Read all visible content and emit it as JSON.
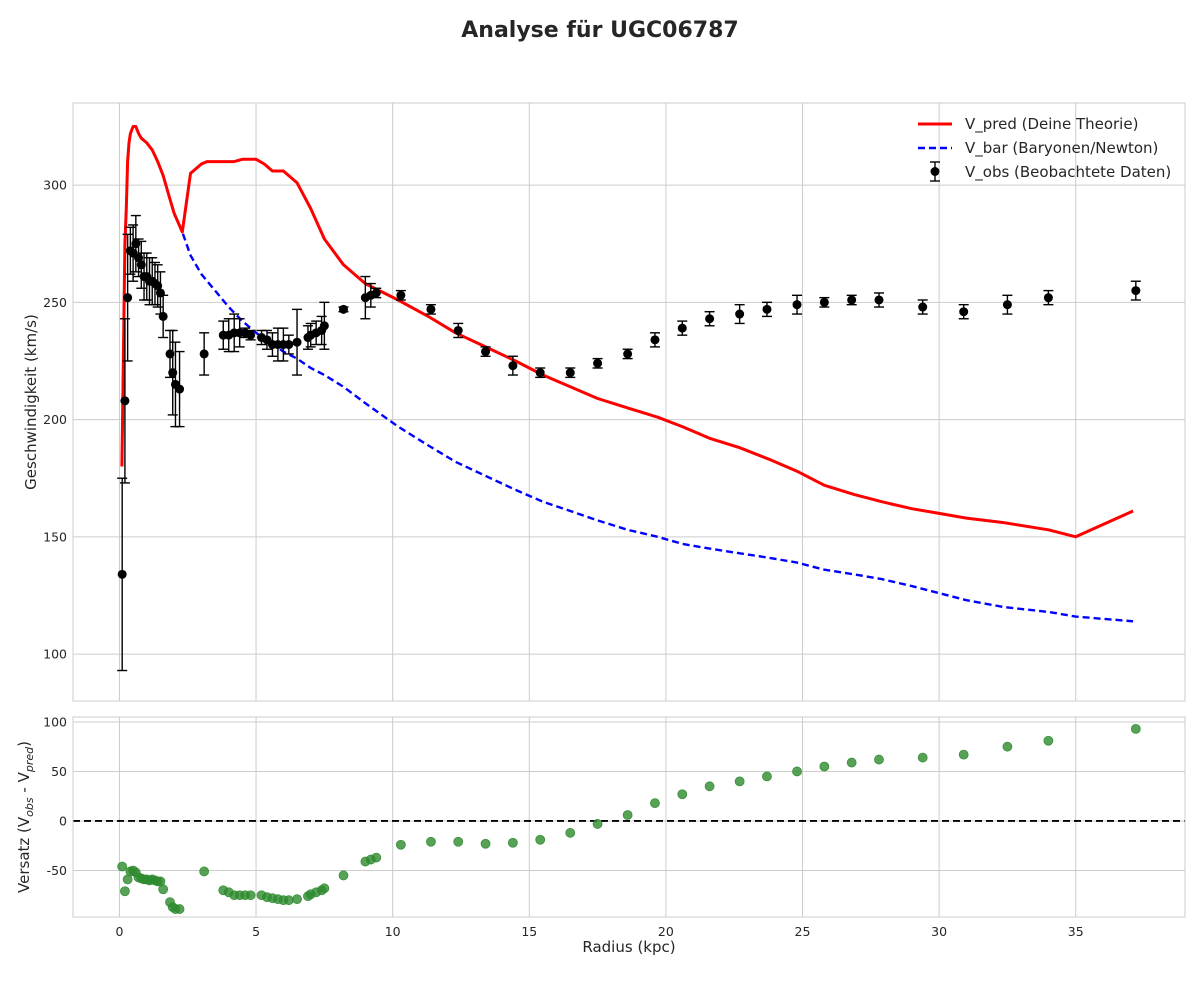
{
  "chart_data": [
    {
      "type": "line",
      "title": "Analyse für UGC06787",
      "xlabel": "",
      "ylabel": "Geschwindigkeit (km/s)",
      "xlim": [
        -1.7,
        39.0
      ],
      "ylim": [
        80,
        335
      ],
      "yticks": [
        100,
        150,
        200,
        250,
        300
      ],
      "xticks": [
        0,
        5,
        10,
        15,
        20,
        25,
        30,
        35
      ],
      "grid": true,
      "legend_position": "top-right",
      "series": [
        {
          "name": "V_pred (Deine Theorie)",
          "style": "solid",
          "color": "#ff0000",
          "x": [
            0.09,
            0.15,
            0.2,
            0.25,
            0.3,
            0.35,
            0.4,
            0.5,
            0.6,
            0.7,
            0.8,
            1.0,
            1.2,
            1.4,
            1.6,
            1.8,
            2.0,
            2.3,
            2.6,
            3.0,
            3.2,
            3.5,
            3.8,
            4.2,
            4.5,
            5.0,
            5.3,
            5.6,
            6.0,
            6.5,
            7.0,
            7.5,
            8.2,
            9.0,
            10.2,
            11.3,
            12.3,
            13.4,
            14.5,
            15.5,
            16.5,
            17.5,
            18.6,
            19.7,
            20.6,
            21.6,
            22.7,
            23.8,
            24.8,
            25.8,
            26.9,
            27.9,
            29.0,
            30.0,
            31.0,
            32.4,
            34.0,
            35.0,
            37.1
          ],
          "y": [
            180,
            230,
            275,
            290,
            310,
            318,
            322,
            325,
            325,
            322,
            320,
            318,
            315,
            310,
            304,
            296,
            288,
            280,
            305,
            309,
            310,
            310,
            310,
            310,
            311,
            311,
            309,
            306,
            306,
            301,
            290,
            277,
            266,
            258,
            251,
            244,
            237,
            231,
            225,
            219,
            214,
            209,
            205,
            201,
            197,
            192,
            188,
            183,
            178,
            172,
            168,
            165,
            162,
            160,
            158,
            156,
            153,
            150,
            161
          ],
          "note": ""
        },
        {
          "name": "V_bar (Baryonen/Newton)",
          "style": "dashed",
          "color": "#0000ff",
          "x": [
            0.09,
            0.15,
            0.2,
            0.25,
            0.3,
            0.35,
            0.4,
            0.5,
            0.6,
            0.7,
            0.8,
            1.0,
            1.2,
            1.4,
            1.6,
            1.8,
            2.0,
            2.3,
            2.6,
            3.0,
            3.5,
            4.0,
            4.5,
            5.0,
            5.5,
            6.0,
            6.5,
            7.0,
            7.5,
            8.2,
            9.0,
            10.2,
            11.3,
            12.3,
            13.4,
            14.5,
            15.5,
            16.5,
            17.5,
            18.6,
            19.7,
            20.6,
            21.6,
            22.7,
            23.8,
            24.8,
            25.8,
            26.9,
            27.9,
            29.0,
            30.0,
            31.0,
            32.4,
            34.0,
            35.0,
            37.1
          ],
          "y": [
            180,
            230,
            275,
            290,
            310,
            318,
            322,
            325,
            325,
            322,
            320,
            318,
            315,
            310,
            304,
            296,
            288,
            280,
            270,
            262,
            255,
            248,
            242,
            237,
            233,
            229,
            226,
            222,
            219,
            214,
            207,
            197,
            189,
            182,
            176,
            170,
            165,
            161,
            157,
            153,
            150,
            147,
            145,
            143,
            141,
            139,
            136,
            134,
            132,
            129,
            126,
            123,
            120,
            118,
            116,
            114
          ]
        },
        {
          "name": "V_obs (Beobachtete Daten)",
          "style": "errorbar",
          "color": "#000000",
          "x": [
            0.1,
            0.2,
            0.3,
            0.4,
            0.5,
            0.6,
            0.7,
            0.8,
            0.9,
            1.0,
            1.1,
            1.2,
            1.3,
            1.4,
            1.5,
            1.6,
            1.85,
            1.95,
            2.05,
            2.2,
            3.1,
            3.8,
            4.0,
            4.2,
            4.4,
            4.6,
            4.8,
            5.2,
            5.4,
            5.6,
            5.8,
            6.0,
            6.2,
            6.5,
            6.9,
            7.0,
            7.2,
            7.4,
            7.5,
            8.2,
            9.0,
            9.2,
            9.4,
            10.3,
            11.4,
            12.4,
            13.4,
            14.4,
            15.4,
            16.5,
            17.5,
            18.6,
            19.6,
            20.6,
            21.6,
            22.7,
            23.7,
            24.8,
            25.8,
            26.8,
            27.8,
            29.4,
            30.9,
            32.5,
            34.0,
            37.2
          ],
          "y": [
            134,
            208,
            252,
            272,
            271,
            275,
            269,
            266,
            261,
            261,
            259,
            259,
            258,
            257,
            254,
            244,
            228,
            220,
            215,
            213,
            228,
            236,
            236,
            237,
            237,
            237,
            236,
            235,
            234,
            232,
            232,
            232,
            232,
            233,
            235,
            236,
            237,
            238,
            240,
            247,
            252,
            253,
            254,
            253,
            247,
            238,
            229,
            223,
            220,
            220,
            224,
            228,
            234,
            239,
            243,
            245,
            247,
            249,
            250,
            251,
            251,
            248,
            246,
            249,
            252,
            255
          ],
          "yerr": [
            41,
            35,
            27,
            10,
            12,
            12,
            8,
            10,
            10,
            10,
            10,
            10,
            9,
            9,
            9,
            9,
            10,
            18,
            18,
            16,
            9,
            6,
            7,
            8,
            6,
            2,
            2,
            3,
            4,
            5,
            7,
            7,
            4,
            14,
            5,
            5,
            5,
            6,
            10,
            1,
            9,
            5,
            2,
            2,
            2,
            3,
            2,
            4,
            2,
            2,
            2,
            2,
            3,
            3,
            3,
            4,
            3,
            4,
            2,
            2,
            3,
            3,
            3,
            4,
            3,
            4
          ]
        }
      ]
    },
    {
      "type": "scatter",
      "title": "",
      "xlabel": "Radius (kpc)",
      "ylabel": "Versatz (V_obs - V_pred)",
      "xlim": [
        -1.7,
        39.0
      ],
      "ylim": [
        -97,
        105
      ],
      "yticks": [
        -50,
        0,
        50,
        100
      ],
      "xticks": [
        0,
        5,
        10,
        15,
        20,
        25,
        30,
        35
      ],
      "grid": true,
      "reference_line": {
        "y": 0,
        "style": "dashed",
        "color": "#000000"
      },
      "series": [
        {
          "name": "",
          "color": "#2e8b2e",
          "x": [
            0.1,
            0.2,
            0.3,
            0.4,
            0.5,
            0.6,
            0.7,
            0.8,
            0.9,
            1.0,
            1.1,
            1.2,
            1.3,
            1.4,
            1.5,
            1.6,
            1.85,
            1.95,
            2.05,
            2.2,
            3.1,
            3.8,
            4.0,
            4.2,
            4.4,
            4.6,
            4.8,
            5.2,
            5.4,
            5.6,
            5.8,
            6.0,
            6.2,
            6.5,
            6.9,
            7.0,
            7.2,
            7.4,
            7.5,
            8.2,
            9.0,
            9.2,
            9.4,
            10.3,
            11.4,
            12.4,
            13.4,
            14.4,
            15.4,
            16.5,
            17.5,
            18.6,
            19.6,
            20.6,
            21.6,
            22.7,
            23.7,
            24.8,
            25.8,
            26.8,
            27.8,
            29.4,
            30.9,
            32.5,
            34.0,
            37.2
          ],
          "y": [
            -46,
            -71,
            -59,
            -51,
            -50,
            -52,
            -57,
            -58,
            -59,
            -59,
            -60,
            -59,
            -60,
            -61,
            -61,
            -69,
            -82,
            -87,
            -89,
            -89,
            -51,
            -70,
            -72,
            -75,
            -75,
            -75,
            -75,
            -75,
            -77,
            -78,
            -79,
            -80,
            -80,
            -79,
            -76,
            -74,
            -72,
            -70,
            -68,
            -55,
            -41,
            -39,
            -37,
            -24,
            -21,
            -21,
            -23,
            -22,
            -19,
            -12,
            -3,
            6,
            18,
            27,
            35,
            40,
            45,
            50,
            55,
            59,
            62,
            64,
            67,
            75,
            81,
            93
          ]
        }
      ]
    }
  ]
}
